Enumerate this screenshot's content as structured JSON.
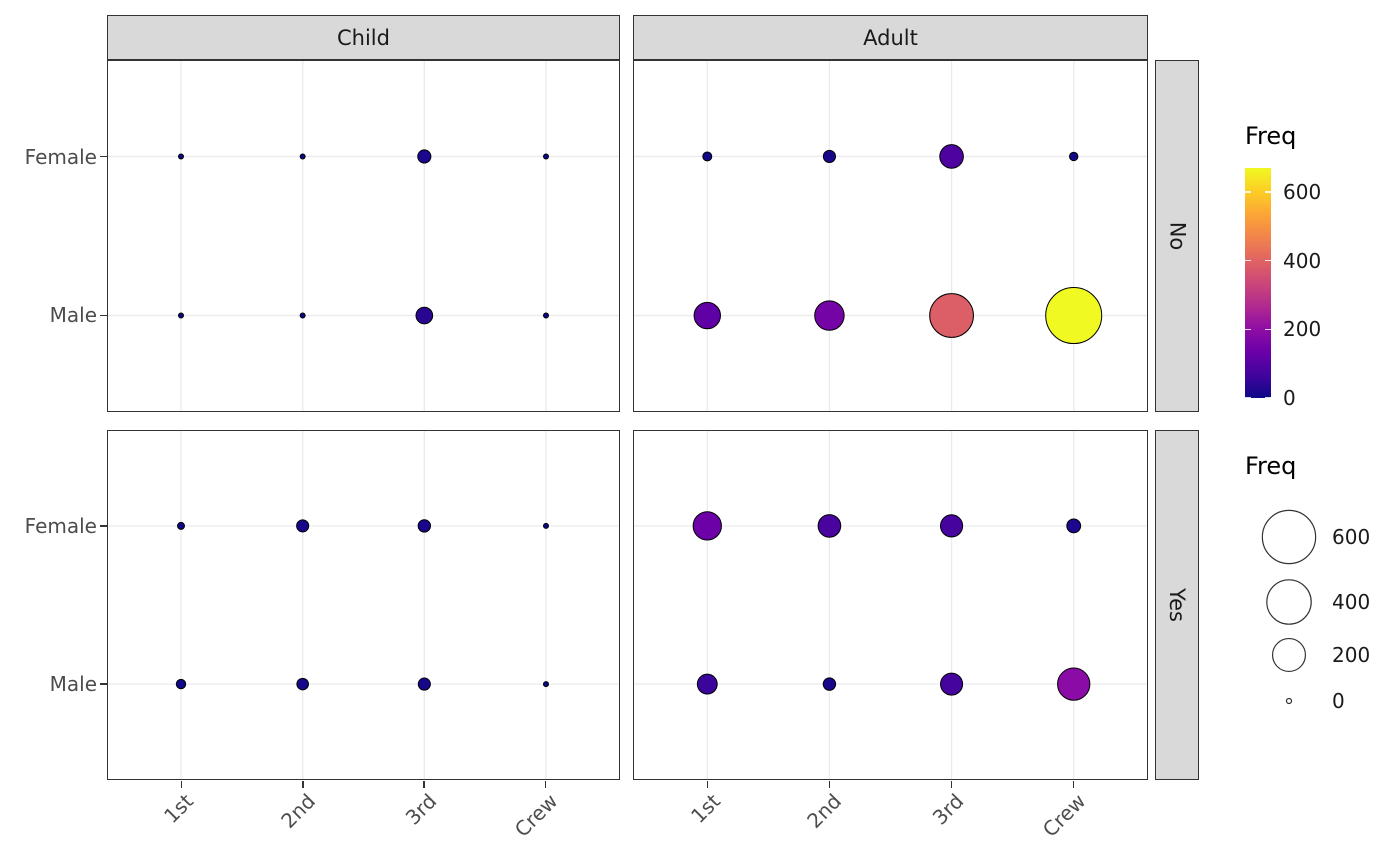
{
  "chart_data": {
    "type": "scatter",
    "description": "Faceted bubble chart of Titanic passenger frequencies; bubble size and plasma color both encode Freq",
    "facet_cols": [
      "Child",
      "Adult"
    ],
    "facet_rows": [
      "No",
      "Yes"
    ],
    "x_categories": [
      "1st",
      "2nd",
      "3rd",
      "Crew"
    ],
    "y_categories": [
      "Female",
      "Male"
    ],
    "series": [
      {
        "facet_col": "Child",
        "facet_row": "No",
        "sex": "Female",
        "freq_by_class": [
          0,
          0,
          17,
          0
        ]
      },
      {
        "facet_col": "Child",
        "facet_row": "No",
        "sex": "Male",
        "freq_by_class": [
          0,
          0,
          35,
          0
        ]
      },
      {
        "facet_col": "Adult",
        "facet_row": "No",
        "sex": "Female",
        "freq_by_class": [
          4,
          13,
          89,
          3
        ]
      },
      {
        "facet_col": "Adult",
        "facet_row": "No",
        "sex": "Male",
        "freq_by_class": [
          118,
          154,
          387,
          670
        ]
      },
      {
        "facet_col": "Child",
        "facet_row": "Yes",
        "sex": "Female",
        "freq_by_class": [
          1,
          13,
          14,
          0
        ]
      },
      {
        "facet_col": "Child",
        "facet_row": "Yes",
        "sex": "Male",
        "freq_by_class": [
          5,
          11,
          13,
          0
        ]
      },
      {
        "facet_col": "Adult",
        "facet_row": "Yes",
        "sex": "Female",
        "freq_by_class": [
          140,
          80,
          76,
          20
        ]
      },
      {
        "facet_col": "Adult",
        "facet_row": "Yes",
        "sex": "Male",
        "freq_by_class": [
          57,
          14,
          75,
          192
        ]
      }
    ],
    "color_legend": {
      "title": "Freq",
      "ticks": [
        0,
        200,
        400,
        600
      ],
      "domain": [
        0,
        670
      ]
    },
    "size_legend": {
      "title": "Freq",
      "values": [
        600,
        400,
        200,
        0
      ],
      "domain": [
        0,
        670
      ]
    },
    "palette": {
      "name": "plasma",
      "stops": [
        [
          0.0,
          "#0d0887"
        ],
        [
          0.1,
          "#41049d"
        ],
        [
          0.2,
          "#6a00a8"
        ],
        [
          0.3,
          "#8f0da4"
        ],
        [
          0.4,
          "#b12a90"
        ],
        [
          0.5,
          "#cc4778"
        ],
        [
          0.6,
          "#e16462"
        ],
        [
          0.7,
          "#f2844b"
        ],
        [
          0.8,
          "#fca636"
        ],
        [
          0.9,
          "#fcce25"
        ],
        [
          1.0,
          "#f0f921"
        ]
      ]
    }
  },
  "theme": {
    "background": "#FFFFFF",
    "strip_bg": "#D9D9D9",
    "panel_border": "#333333",
    "grid": "#EBEBEB",
    "axis_text": "#4D4D4D",
    "text": "#1A1A1A",
    "point_stroke": "#000000"
  }
}
